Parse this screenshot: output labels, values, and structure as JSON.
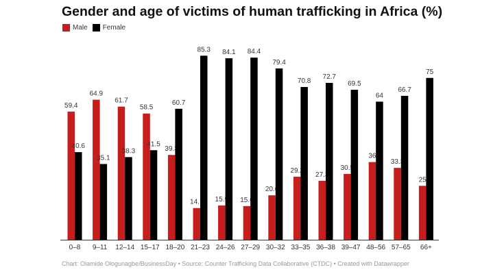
{
  "chart_data": {
    "type": "bar",
    "title": "Gender and age of victims of human trafficking in Africa (%)",
    "xlabel": "",
    "ylabel": "",
    "ylim": [
      0,
      87
    ],
    "grid": false,
    "legend_placement": "top-left",
    "categories": [
      "0–8",
      "9–11",
      "12–14",
      "15–17",
      "18–20",
      "21–23",
      "24–26",
      "27–29",
      "30–32",
      "33–35",
      "36–38",
      "39–47",
      "48–56",
      "57–65",
      "66+"
    ],
    "series": [
      {
        "name": "Male",
        "color": "#c71e1d",
        "values": [
          59.4,
          64.9,
          61.7,
          58.5,
          39.3,
          14.7,
          15.9,
          15.6,
          20.6,
          29.2,
          27.3,
          30.5,
          36,
          33.3,
          25
        ]
      },
      {
        "name": "Female",
        "color": "#000000",
        "values": [
          40.6,
          35.1,
          38.3,
          41.5,
          60.7,
          85.3,
          84.1,
          84.4,
          79.4,
          70.8,
          72.7,
          69.5,
          64,
          66.7,
          75
        ]
      }
    ],
    "footer": "Chart: Olamide Ologunagbe/BusinessDay • Source: Counter Trafficking Data Collaborative (CTDC) • Created with Datawrapper"
  }
}
